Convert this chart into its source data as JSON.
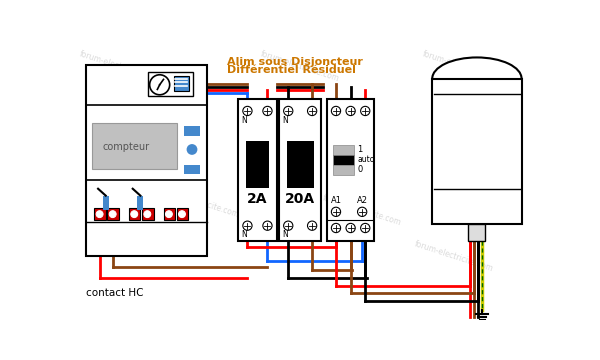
{
  "title_line1": "Alim sous Disjoncteur",
  "title_line2": "Différentiel Résiduel",
  "watermark": "forum-electricite.com",
  "contact_hc": "contact HC",
  "breaker_2a": "2A",
  "breaker_20a": "20A",
  "bg_color": "#ffffff",
  "wire_red": "#ff0000",
  "wire_blue": "#1166ff",
  "wire_brown": "#8B4513",
  "wire_black": "#000000",
  "wire_yellow": "#cccc00",
  "wire_green": "#006600",
  "box_color": "#000000",
  "meter_gray": "#c0c0c0",
  "meter_text_color": "#555555",
  "red_terminal": "#cc0000",
  "blue_indicator": "#4488cc",
  "title_color": "#cc7700"
}
